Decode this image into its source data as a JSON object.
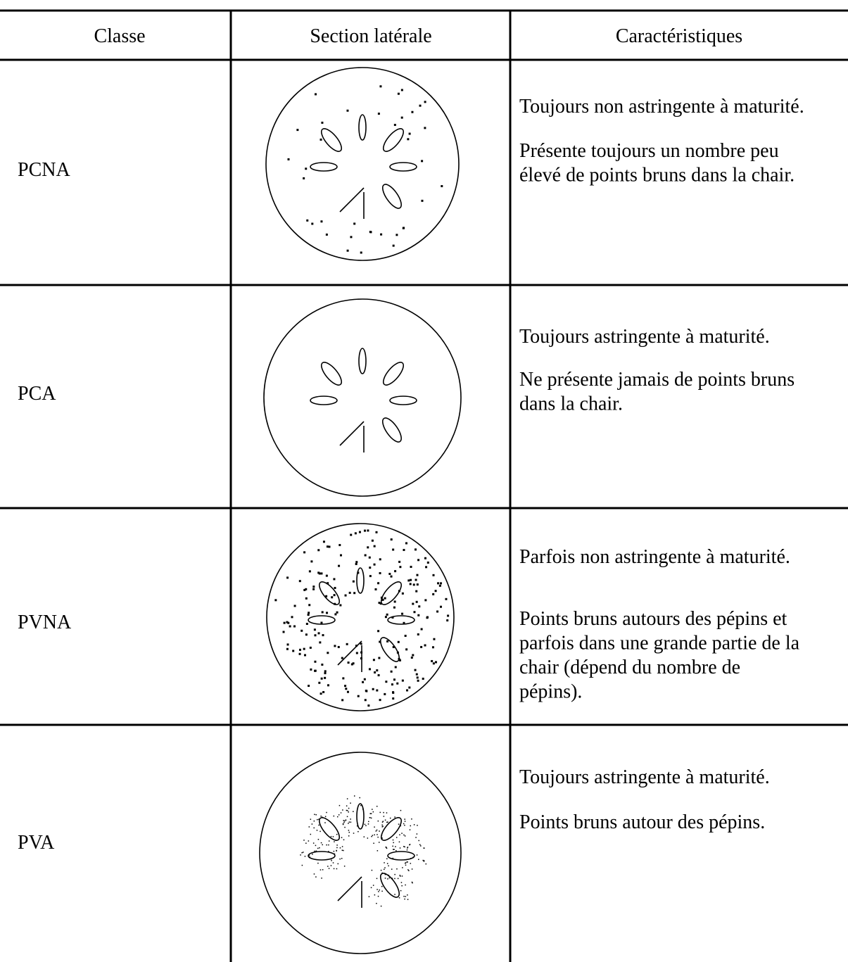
{
  "header": [
    "Classe",
    "Section latérale",
    "Caractéristiques"
  ],
  "rows": [
    {
      "class": "PCNA",
      "paragraphs": [
        [
          "Toujours non astringente à maturité."
        ],
        [
          "Présente toujours un nombre peu",
          "élevé de points bruns dans la chair."
        ]
      ]
    },
    {
      "class": "PCA",
      "paragraphs": [
        [
          "Toujours astringente à maturité."
        ],
        [
          "Ne présente jamais de points bruns",
          "dans la chair."
        ]
      ]
    },
    {
      "class": "PVNA",
      "paragraphs": [
        [
          "Parfois non astringente à maturité."
        ],
        [
          "Points bruns autours des pépins et",
          "parfois dans une grande partie de la",
          "chair (dépend du nombre de",
          "pépins)."
        ]
      ]
    },
    {
      "class": "PVA",
      "paragraphs": [
        [
          "Toujours astringente à maturité."
        ],
        [
          "Points bruns autour des pépins."
        ]
      ]
    }
  ]
}
